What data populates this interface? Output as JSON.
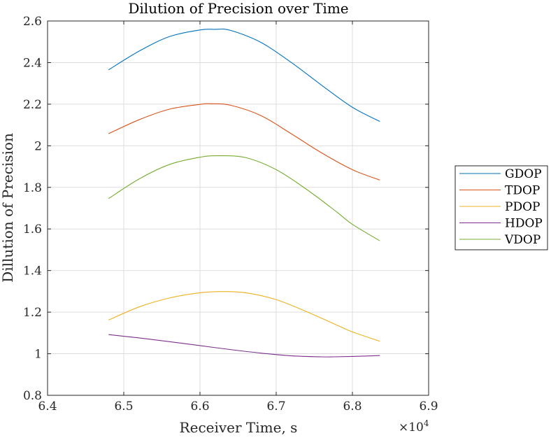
{
  "chart_data": {
    "type": "line",
    "title": "Dilution of Precision over Time",
    "xlabel": "Receiver Time, s",
    "ylabel": "Dillution of Precision",
    "x_exponent_label": "×10",
    "x_exponent_power": "4",
    "xlim": [
      6.4,
      6.9
    ],
    "ylim": [
      0.8,
      2.6
    ],
    "x_ticks": [
      6.4,
      6.5,
      6.6,
      6.7,
      6.8,
      6.9
    ],
    "x_tick_labels": [
      "6.4",
      "6.5",
      "6.6",
      "6.7",
      "6.8",
      "6.9"
    ],
    "y_ticks": [
      0.8,
      1.0,
      1.2,
      1.4,
      1.6,
      1.8,
      2.0,
      2.2,
      2.4,
      2.6
    ],
    "y_tick_labels": [
      "0.8",
      "1",
      "1.2",
      "1.4",
      "1.6",
      "1.8",
      "2",
      "2.2",
      "2.4",
      "2.6"
    ],
    "grid": true,
    "legend_position": "right-outside",
    "series": [
      {
        "name": "GDOP",
        "color": "#0072BD",
        "x": [
          6.48,
          6.52,
          6.56,
          6.6,
          6.62,
          6.64,
          6.68,
          6.72,
          6.76,
          6.8,
          6.836
        ],
        "y": [
          2.365,
          2.455,
          2.525,
          2.557,
          2.56,
          2.555,
          2.497,
          2.4,
          2.29,
          2.185,
          2.117
        ]
      },
      {
        "name": "TDOP",
        "color": "#D95319",
        "x": [
          6.48,
          6.52,
          6.56,
          6.6,
          6.615,
          6.64,
          6.68,
          6.72,
          6.76,
          6.8,
          6.836
        ],
        "y": [
          2.058,
          2.125,
          2.176,
          2.199,
          2.202,
          2.195,
          2.145,
          2.057,
          1.965,
          1.885,
          1.835
        ]
      },
      {
        "name": "PDOP",
        "color": "#EDB120",
        "x": [
          6.48,
          6.52,
          6.56,
          6.6,
          6.63,
          6.66,
          6.7,
          6.74,
          6.78,
          6.8,
          6.836
        ],
        "y": [
          1.162,
          1.225,
          1.268,
          1.293,
          1.299,
          1.293,
          1.26,
          1.202,
          1.137,
          1.105,
          1.06
        ]
      },
      {
        "name": "HDOP",
        "color": "#7E2F8E",
        "x": [
          6.48,
          6.52,
          6.56,
          6.6,
          6.64,
          6.68,
          6.72,
          6.76,
          6.775,
          6.8,
          6.836
        ],
        "y": [
          1.092,
          1.076,
          1.058,
          1.039,
          1.02,
          1.003,
          0.99,
          0.985,
          0.985,
          0.987,
          0.991
        ]
      },
      {
        "name": "VDOP",
        "color": "#77AC30",
        "x": [
          6.48,
          6.52,
          6.56,
          6.6,
          6.625,
          6.66,
          6.7,
          6.74,
          6.78,
          6.8,
          6.836
        ],
        "y": [
          1.746,
          1.84,
          1.91,
          1.945,
          1.952,
          1.943,
          1.885,
          1.79,
          1.68,
          1.622,
          1.543
        ]
      }
    ]
  }
}
